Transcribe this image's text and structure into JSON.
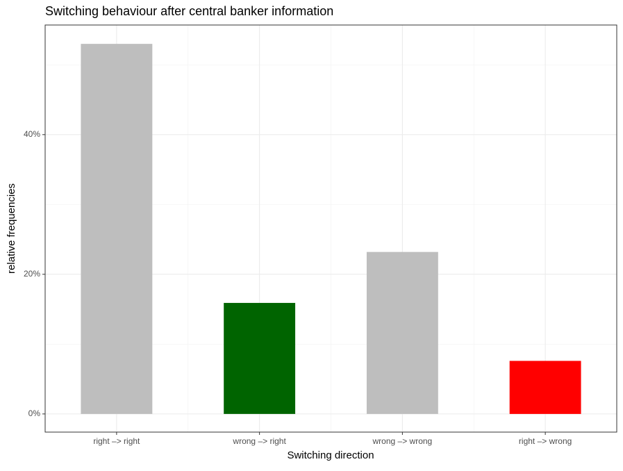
{
  "chart_data": {
    "type": "bar",
    "title": "Switching behaviour after central banker information",
    "x_label": "Switching direction",
    "y_label": "relative frequencies",
    "categories": [
      "right –> right",
      "wrong –> right",
      "wrong –> wrong",
      "right –> wrong"
    ],
    "values": [
      53.0,
      15.9,
      23.2,
      7.6
    ],
    "colors": [
      "#bebebe",
      "#006400",
      "#bebebe",
      "#ff0000"
    ],
    "ylim": [
      -2.6,
      55.7
    ],
    "yticks": [
      {
        "value": 0,
        "label": "0%"
      },
      {
        "value": 20,
        "label": "20%"
      },
      {
        "value": 40,
        "label": "40%"
      }
    ],
    "y_minor_grid": [
      10,
      30,
      50
    ],
    "grid": true
  }
}
